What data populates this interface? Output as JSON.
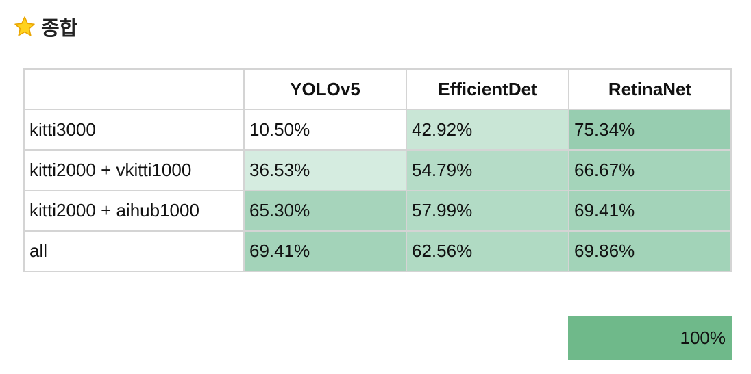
{
  "section": {
    "icon": "star-icon",
    "title": "종합"
  },
  "table": {
    "headers": [
      "",
      "YOLOv5",
      "EfficientDet",
      "RetinaNet"
    ],
    "rows": [
      {
        "label": "kitti3000",
        "values": [
          "10.50%",
          "42.92%",
          "75.34%"
        ],
        "colors": [
          "#ffffff",
          "#c9e6d6",
          "#97cdb0"
        ]
      },
      {
        "label": "kitti2000 + vkitti1000",
        "values": [
          "36.53%",
          "54.79%",
          "66.67%"
        ],
        "colors": [
          "#d5ece0",
          "#b5dcc7",
          "#a4d4ba"
        ]
      },
      {
        "label": "kitti2000 + aihub1000",
        "values": [
          "65.30%",
          "57.99%",
          "69.41%"
        ],
        "colors": [
          "#a6d4bb",
          "#b2dbc5",
          "#a3d3b9"
        ]
      },
      {
        "label": "all",
        "values": [
          "69.41%",
          "62.56%",
          "69.86%"
        ],
        "colors": [
          "#a3d3b9",
          "#b0dac3",
          "#a2d3b8"
        ]
      }
    ]
  },
  "legend": {
    "label": "100%",
    "color": "#6fb98a"
  }
}
